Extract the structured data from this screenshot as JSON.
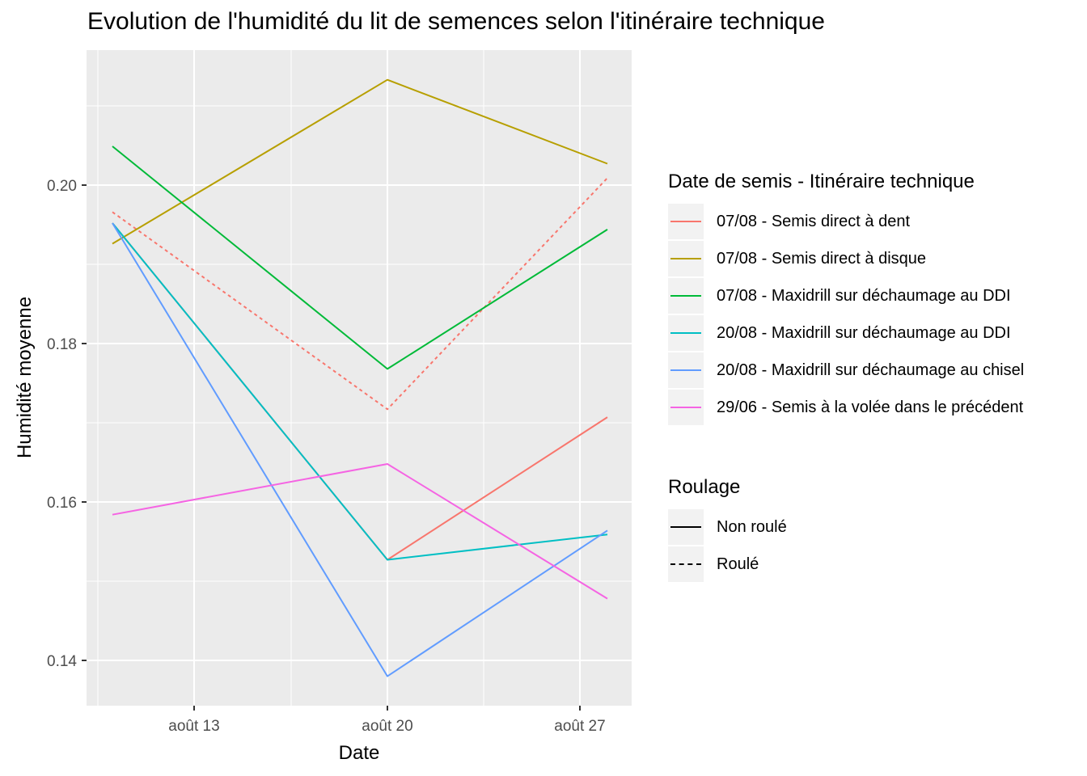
{
  "title": "Evolution de l'humidité du lit de semences selon l'itinéraire technique",
  "colors": {
    "panel_bg": "#EBEBEB",
    "grid": "#FFFFFF",
    "axis_text": "#4D4D4D"
  },
  "chart_data": {
    "type": "line",
    "title": "Evolution de l'humidité du lit de semences selon l'itinéraire technique",
    "xlabel": "Date",
    "ylabel": "Humidité moyenne",
    "x": [
      "août 10",
      "août 20",
      "août 28"
    ],
    "x_tick_labels": [
      "août 13",
      "août 20",
      "août 27"
    ],
    "y_tick_labels": [
      "0.14",
      "0.16",
      "0.18",
      "0.20"
    ],
    "ylim": [
      0.135,
      0.2165
    ],
    "grid": true,
    "legend_position": "right",
    "series": [
      {
        "name": "07/08 - Semis direct à dent",
        "roulage": "Non roulé",
        "color": "#F8766D",
        "linetype": "solid",
        "values": [
          0.1952,
          0.1527,
          0.1707
        ]
      },
      {
        "name": "07/08 - Semis direct à dent",
        "roulage": "Roulé",
        "color": "#F8766D",
        "linetype": "dashed",
        "values": [
          0.1966,
          0.1717,
          0.2009
        ]
      },
      {
        "name": "07/08 - Semis direct à disque",
        "roulage": "Non roulé",
        "color": "#B79F00",
        "linetype": "solid",
        "values": [
          0.1926,
          0.2133,
          0.2027
        ]
      },
      {
        "name": "07/08 - Maxidrill sur déchaumage au DDI",
        "roulage": "Non roulé",
        "color": "#00BA38",
        "linetype": "solid",
        "values": [
          0.2049,
          0.1768,
          0.1944
        ]
      },
      {
        "name": "20/08 - Maxidrill sur déchaumage au DDI",
        "roulage": "Non roulé",
        "color": "#00BFC4",
        "linetype": "solid",
        "values": [
          0.1952,
          0.1527,
          0.1559
        ]
      },
      {
        "name": "20/08 - Maxidrill sur déchaumage au chisel",
        "roulage": "Non roulé",
        "color": "#619CFF",
        "linetype": "solid",
        "values": [
          0.1952,
          0.138,
          0.1564
        ]
      },
      {
        "name": "29/06 - Semis à la volée dans le précédent",
        "roulage": "Non roulé",
        "color": "#F564E3",
        "linetype": "solid",
        "values": [
          0.1584,
          0.1648,
          0.1478
        ]
      }
    ]
  },
  "legend_color": {
    "title": "Date de semis - Itinéraire technique",
    "items": [
      {
        "label": "07/08 - Semis direct à dent",
        "color": "#F8766D"
      },
      {
        "label": "07/08 - Semis direct à disque",
        "color": "#B79F00"
      },
      {
        "label": "07/08 - Maxidrill sur déchaumage au DDI",
        "color": "#00BA38"
      },
      {
        "label": "20/08 - Maxidrill sur déchaumage au DDI",
        "color": "#00BFC4"
      },
      {
        "label": "20/08 - Maxidrill sur déchaumage au chisel",
        "color": "#619CFF"
      },
      {
        "label": "29/06 - Semis à la volée dans le précédent",
        "color": "#F564E3"
      }
    ]
  },
  "legend_linetype": {
    "title": "Roulage",
    "items": [
      {
        "label": "Non roulé",
        "style": "solid"
      },
      {
        "label": "Roulé",
        "style": "dashed"
      }
    ]
  }
}
